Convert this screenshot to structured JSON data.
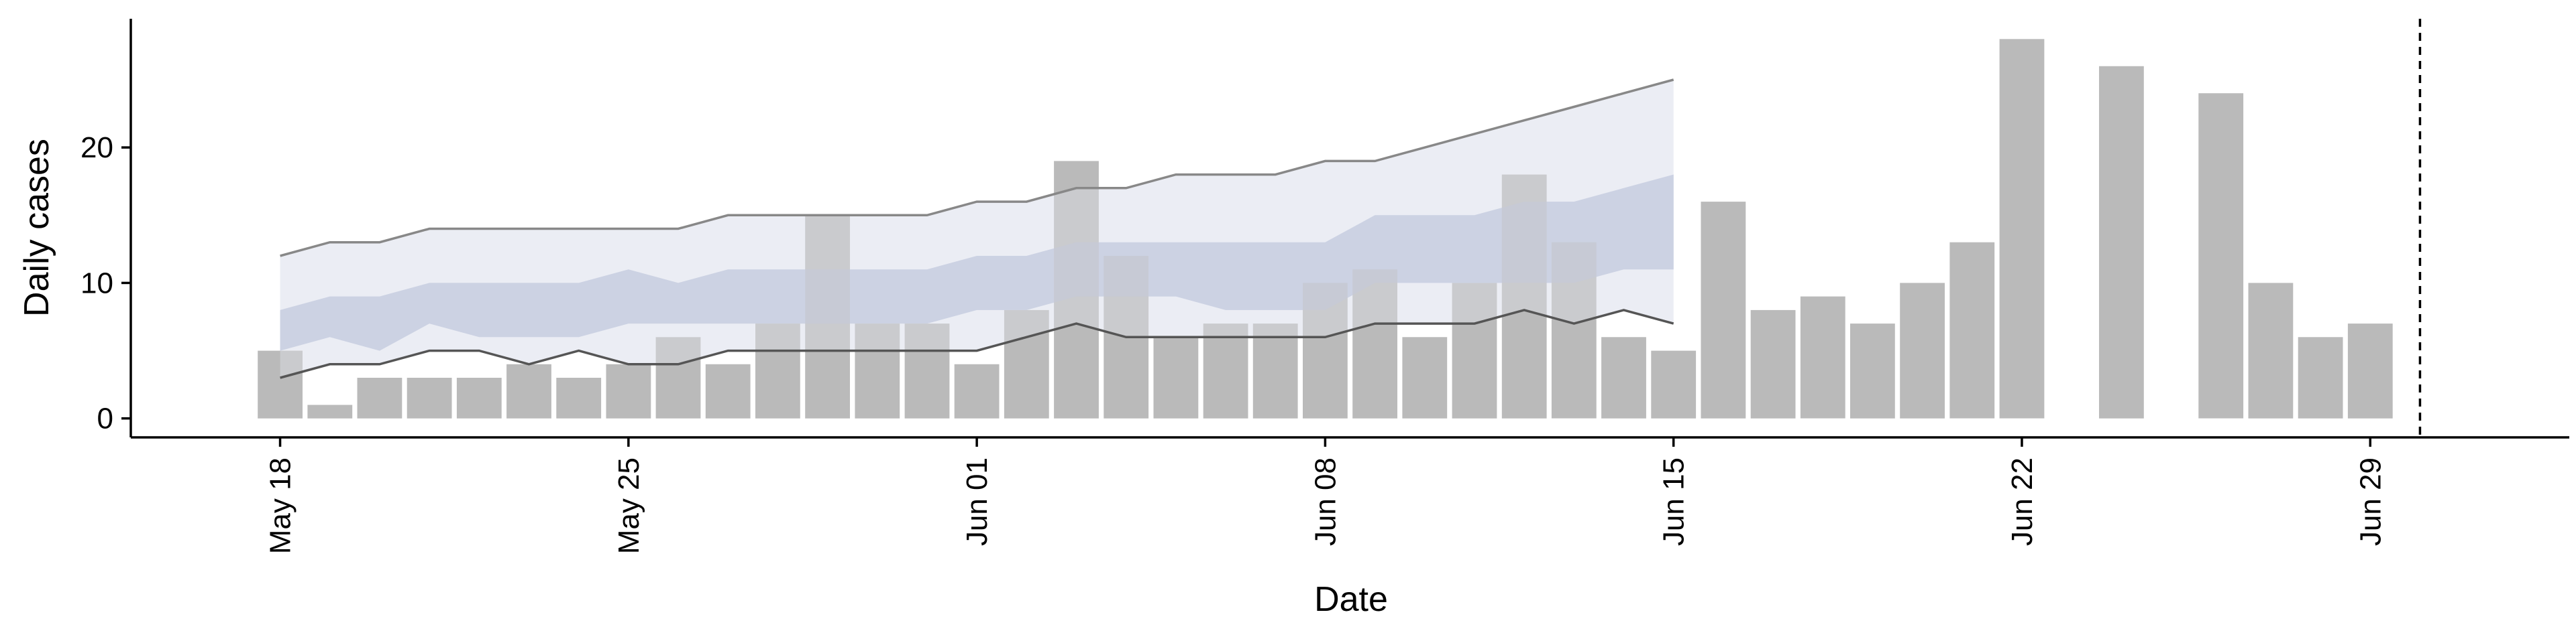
{
  "chart_data": {
    "type": "bar",
    "xlabel": "Date",
    "ylabel": "Daily cases",
    "x_range": [
      "2020-05-15",
      "2020-07-03"
    ],
    "ylim": [
      -1.4,
      29.5
    ],
    "grid": false,
    "x_ticks": [
      {
        "date": "2020-05-18",
        "label": "May 18"
      },
      {
        "date": "2020-05-25",
        "label": "May 25"
      },
      {
        "date": "2020-06-01",
        "label": "Jun 01"
      },
      {
        "date": "2020-06-08",
        "label": "Jun 08"
      },
      {
        "date": "2020-06-15",
        "label": "Jun 15"
      },
      {
        "date": "2020-06-22",
        "label": "Jun 22"
      },
      {
        "date": "2020-06-29",
        "label": "Jun 29"
      }
    ],
    "y_ticks": [
      0,
      10,
      20
    ],
    "reference_line_date": "2020-06-30",
    "colors": {
      "bars": "#bababa",
      "ribbon_outer": "#e9ebf3",
      "ribbon_inner": "#c3cade",
      "outer_bound_lines": "#888888",
      "inner_bound_lines": "#555555"
    },
    "series": [
      {
        "kind": "bar",
        "x": [
          "2020-05-18",
          "2020-05-19",
          "2020-05-20",
          "2020-05-21",
          "2020-05-22",
          "2020-05-23",
          "2020-05-24",
          "2020-05-25",
          "2020-05-26",
          "2020-05-27",
          "2020-05-28",
          "2020-05-29",
          "2020-05-30",
          "2020-05-31",
          "2020-06-01",
          "2020-06-02",
          "2020-06-03",
          "2020-06-04",
          "2020-06-05",
          "2020-06-06",
          "2020-06-07",
          "2020-06-08",
          "2020-06-09",
          "2020-06-10",
          "2020-06-11",
          "2020-06-12",
          "2020-06-13",
          "2020-06-14",
          "2020-06-15",
          "2020-06-16",
          "2020-06-17",
          "2020-06-18",
          "2020-06-19",
          "2020-06-20",
          "2020-06-21",
          "2020-06-22",
          "2020-06-23",
          "2020-06-24",
          "2020-06-25",
          "2020-06-26",
          "2020-06-27",
          "2020-06-28",
          "2020-06-29"
        ],
        "values": [
          5,
          1,
          3,
          3,
          3,
          4,
          3,
          4,
          6,
          4,
          7,
          15,
          7,
          7,
          4,
          8,
          19,
          12,
          6,
          7,
          7,
          10,
          11,
          6,
          10,
          18,
          13,
          6,
          5,
          16,
          8,
          9,
          7,
          10,
          13,
          28,
          null,
          26,
          null,
          24,
          10,
          6,
          7
        ]
      },
      {
        "kind": "ribbon-outer",
        "x": [
          "2020-05-18",
          "2020-05-19",
          "2020-05-20",
          "2020-05-21",
          "2020-05-22",
          "2020-05-23",
          "2020-05-24",
          "2020-05-25",
          "2020-05-26",
          "2020-05-27",
          "2020-05-28",
          "2020-05-29",
          "2020-05-30",
          "2020-05-31",
          "2020-06-01",
          "2020-06-02",
          "2020-06-03",
          "2020-06-04",
          "2020-06-05",
          "2020-06-06",
          "2020-06-07",
          "2020-06-08",
          "2020-06-09",
          "2020-06-10",
          "2020-06-11",
          "2020-06-12",
          "2020-06-13",
          "2020-06-14",
          "2020-06-15"
        ],
        "lower": [
          3,
          4,
          4,
          5,
          5,
          4,
          5,
          4,
          4,
          5,
          5,
          5,
          5,
          5,
          5,
          6,
          7,
          6,
          6,
          6,
          6,
          6,
          7,
          7,
          7,
          8,
          7,
          8,
          7
        ],
        "upper": [
          12,
          13,
          13,
          14,
          14,
          14,
          14,
          14,
          14,
          15,
          15,
          15,
          15,
          15,
          16,
          16,
          17,
          17,
          18,
          18,
          18,
          19,
          19,
          20,
          21,
          22,
          23,
          24,
          25
        ]
      },
      {
        "kind": "ribbon-inner",
        "x": [
          "2020-05-18",
          "2020-05-19",
          "2020-05-20",
          "2020-05-21",
          "2020-05-22",
          "2020-05-23",
          "2020-05-24",
          "2020-05-25",
          "2020-05-26",
          "2020-05-27",
          "2020-05-28",
          "2020-05-29",
          "2020-05-30",
          "2020-05-31",
          "2020-06-01",
          "2020-06-02",
          "2020-06-03",
          "2020-06-04",
          "2020-06-05",
          "2020-06-06",
          "2020-06-07",
          "2020-06-08",
          "2020-06-09",
          "2020-06-10",
          "2020-06-11",
          "2020-06-12",
          "2020-06-13",
          "2020-06-14",
          "2020-06-15"
        ],
        "lower": [
          5,
          6,
          5,
          7,
          6,
          6,
          6,
          7,
          7,
          7,
          7,
          7,
          7,
          7,
          8,
          8,
          9,
          9,
          9,
          8,
          8,
          8,
          10,
          10,
          10,
          10,
          10,
          11,
          11
        ],
        "upper": [
          8,
          9,
          9,
          10,
          10,
          10,
          10,
          11,
          10,
          11,
          11,
          11,
          11,
          11,
          12,
          12,
          13,
          13,
          13,
          13,
          13,
          13,
          15,
          15,
          15,
          16,
          16,
          17,
          18
        ]
      }
    ]
  }
}
